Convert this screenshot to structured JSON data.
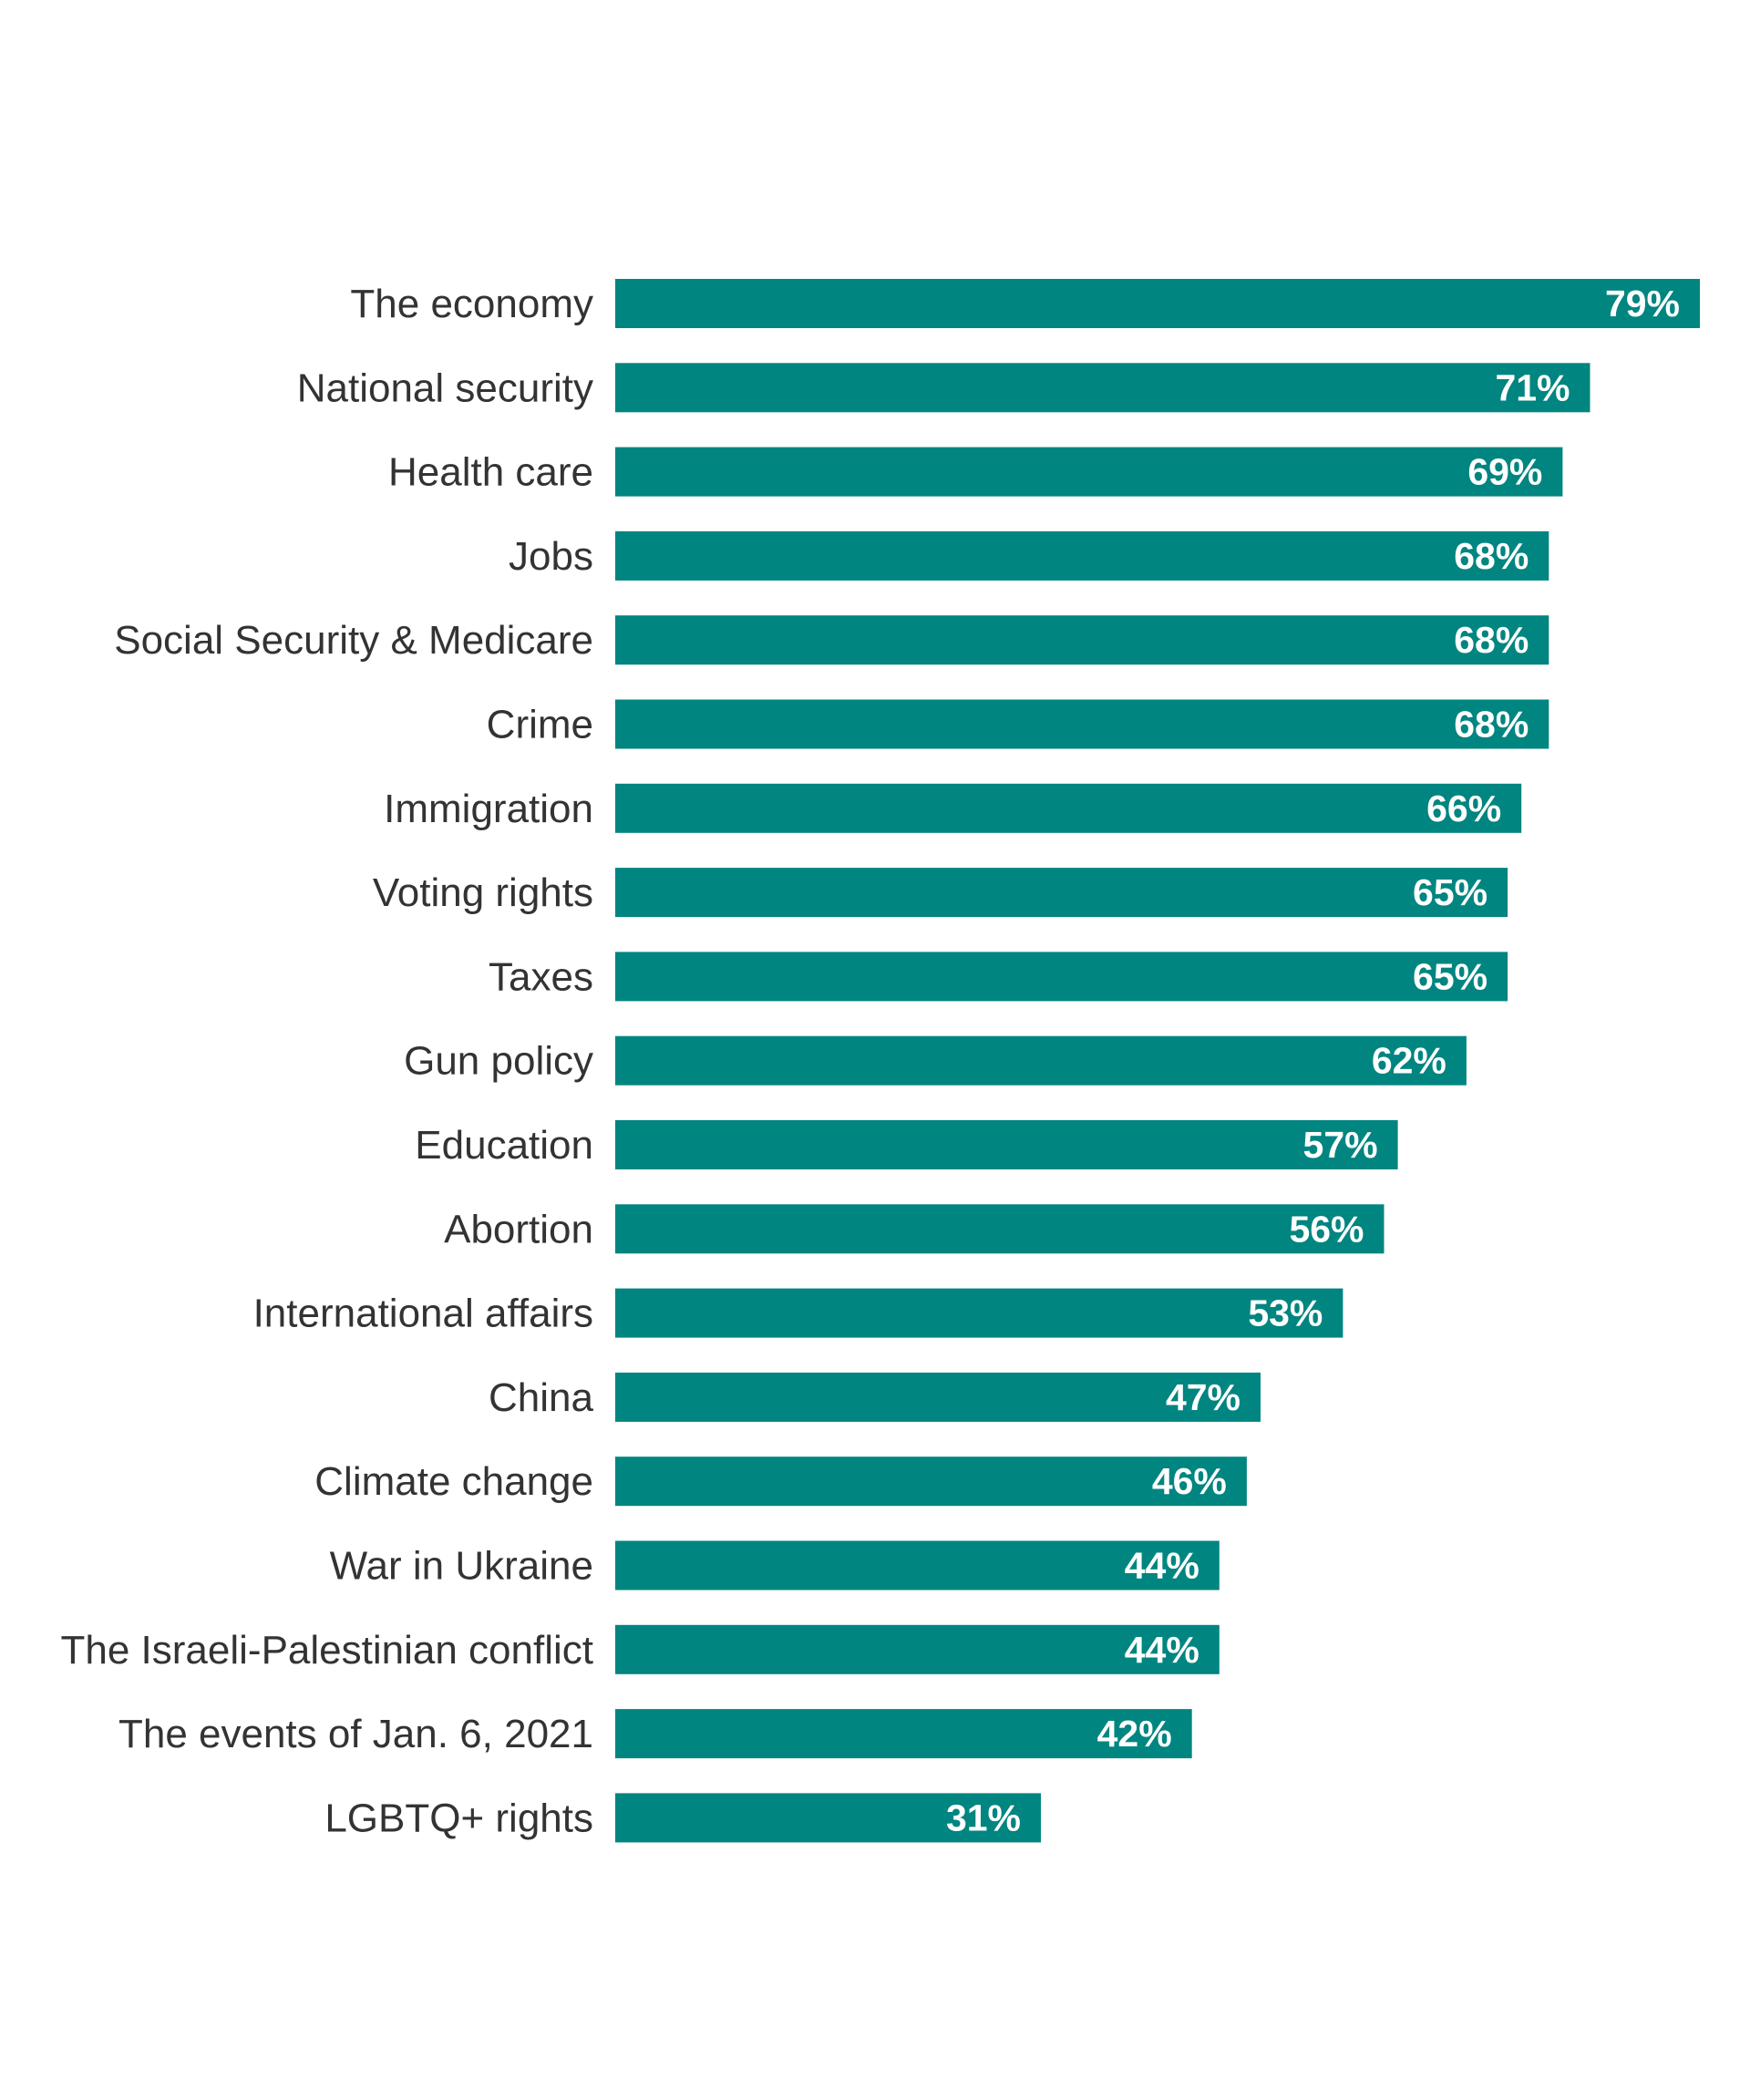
{
  "chart_data": {
    "type": "bar",
    "orientation": "horizontal",
    "categories": [
      "The economy",
      "National security",
      "Health care",
      "Jobs",
      "Social Security & Medicare",
      "Crime",
      "Immigration",
      "Voting rights",
      "Taxes",
      "Gun policy",
      "Education",
      "Abortion",
      "International affairs",
      "China",
      "Climate change",
      "War in Ukraine",
      "The Israeli-Palestinian conflict",
      "The events of Jan. 6, 2021",
      "LGBTQ+ rights"
    ],
    "values": [
      79,
      71,
      69,
      68,
      68,
      68,
      66,
      65,
      65,
      62,
      57,
      56,
      53,
      47,
      46,
      44,
      44,
      42,
      31
    ],
    "value_labels": [
      "79%",
      "71%",
      "69%",
      "68%",
      "68%",
      "68%",
      "66%",
      "65%",
      "65%",
      "62%",
      "57%",
      "56%",
      "53%",
      "47%",
      "46%",
      "44%",
      "44%",
      "42%",
      "31%"
    ],
    "xlim": [
      0,
      79
    ],
    "grid": false,
    "bar_color": "#008580",
    "value_label_color": "#ffffff",
    "category_label_color": "#333333"
  }
}
